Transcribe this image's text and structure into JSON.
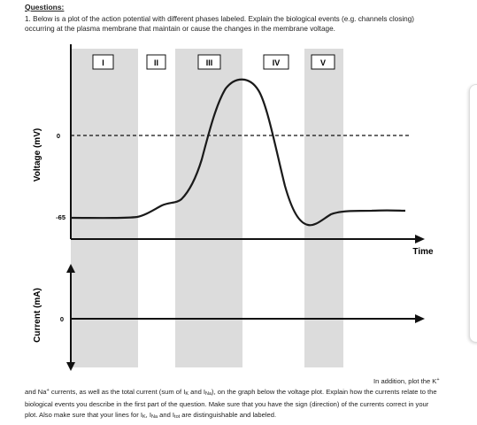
{
  "heading": "Questions:",
  "question": "1. Below is a plot of the action potential with different phases labeled. Explain the biological events (e.g. channels closing) occurring at the plasma membrane that maintain or cause the changes in the membrane voltage.",
  "voltage_plot": {
    "ylabel": "Voltage (mV)",
    "xlabel": "Time",
    "tick_zero": "0",
    "tick_rest": "-65",
    "phases": [
      "I",
      "II",
      "III",
      "IV",
      "V"
    ],
    "resting_mV": -65,
    "peak_mV": 40,
    "zero_line_style": "dashed"
  },
  "current_plot": {
    "ylabel": "Current (mA)",
    "tick_zero": "0"
  },
  "instructions": {
    "line1": "In addition, plot the K",
    "line1_sup1": "+",
    "line1_mid": " and Na",
    "line1_sup2": "+",
    "line1_rest": " currents, as well as the total current (sum of I",
    "sub_k": "K",
    "and_i": " and I",
    "sub_na": "Na",
    "line1_end": "), on the graph below the",
    "line2": "voltage plot. Explain how the currents relate to the biological events you describe in the first part of the question.",
    "line3a": "Make sure that you have the sign (direction) of the currents correct in your plot. Also make sure that your lines for I",
    "line3b": ",",
    "i_na_prefix": "I",
    "sub_tot": "tot",
    "line4_and": " and I",
    "line4_end": " are distinguishable and labeled."
  },
  "colors": {
    "band": "#dcdcdc",
    "axis": "#111111",
    "trace": "#1a1a1a"
  }
}
